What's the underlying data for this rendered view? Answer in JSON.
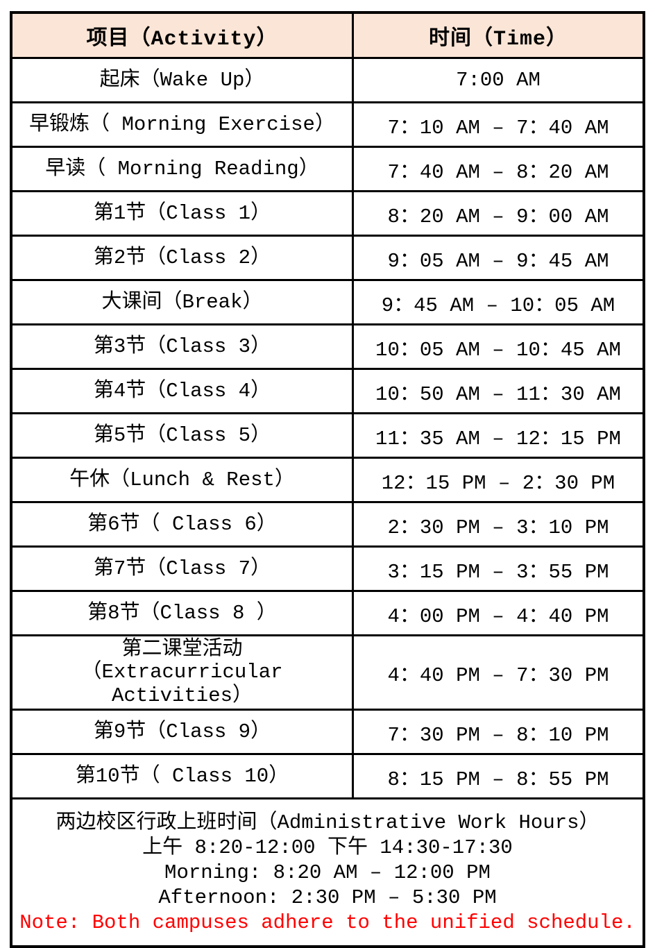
{
  "table": {
    "header": {
      "activity": "项目（Activity）",
      "time": "时间（Time）"
    },
    "rows": [
      {
        "activity": "起床（Wake Up）",
        "time": "7:00 AM"
      },
      {
        "activity": "早锻炼（ Morning Exercise）",
        "time": "7：10 AM – 7：40 AM"
      },
      {
        "activity": "早读（ Morning Reading）",
        "time": "7：40 AM – 8：20 AM"
      },
      {
        "activity": "第1节（Class 1）",
        "time": "8：20 AM – 9：00 AM"
      },
      {
        "activity": "第2节（Class 2）",
        "time": "9：05 AM – 9：45 AM"
      },
      {
        "activity": "大课间（Break）",
        "time": "9：45 AM – 10：05 AM"
      },
      {
        "activity": "第3节（Class 3）",
        "time": "10：05 AM – 10：45 AM"
      },
      {
        "activity": "第4节（Class 4）",
        "time": "10：50 AM – 11：30 AM"
      },
      {
        "activity": "第5节（Class 5）",
        "time": "11：35 AM – 12：15 PM"
      },
      {
        "activity": "午休（Lunch & Rest）",
        "time": "12：15 PM – 2：30 PM"
      },
      {
        "activity": "第6节（ Class 6）",
        "time": "2：30 PM – 3：10 PM"
      },
      {
        "activity": "第7节（Class 7）",
        "time": "3：15 PM – 3：55 PM"
      },
      {
        "activity": "第8节（Class 8 ）",
        "time": "4：00 PM – 4：40 PM"
      },
      {
        "activity": "第二课堂活动\n（Extracurricular Activities）",
        "time": "4：40 PM – 7：30 PM"
      },
      {
        "activity": "第9节（Class 9）",
        "time": "7：30 PM – 8：10 PM"
      },
      {
        "activity": "第10节（ Class 10）",
        "time": "8：15 PM – 8：55 PM"
      }
    ],
    "footer": {
      "lines": [
        "两边校区行政上班时间（Administrative Work Hours）",
        "上午 8:20-12:00 下午 14:30-17:30",
        "Morning: 8:20 AM – 12:00 PM",
        "Afternoon: 2:30 PM – 5:30 PM",
        "Note: Both campuses adhere to the unified schedule."
      ]
    }
  },
  "colors": {
    "header_bg": "#FBE5D6",
    "border": "#000000",
    "text": "#000000",
    "note": "#FF0000"
  }
}
